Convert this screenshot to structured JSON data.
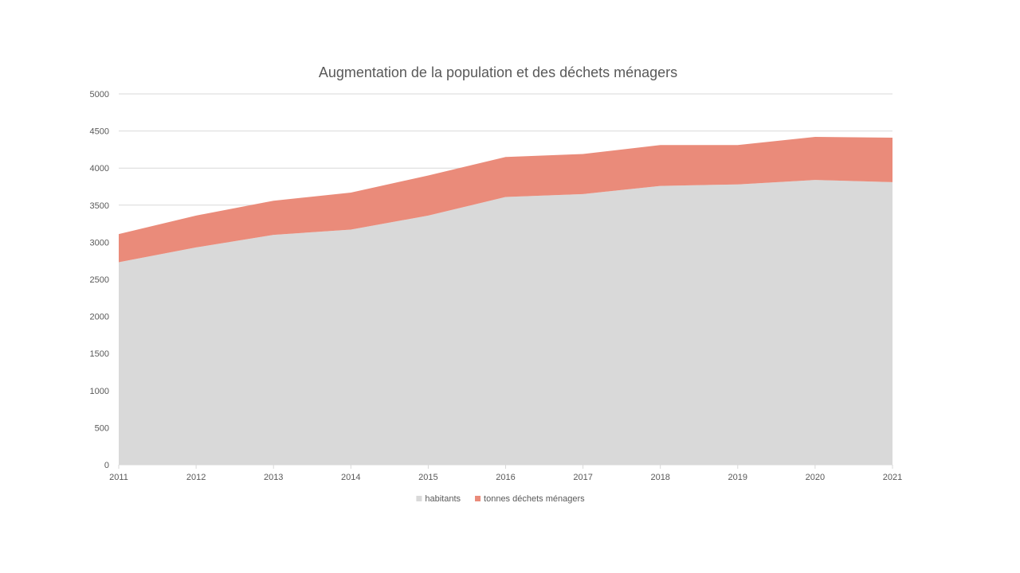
{
  "chart_data": {
    "type": "area",
    "stacked": true,
    "title": "Augmentation de la population et des déchets ménagers",
    "xlabel": "",
    "ylabel": "",
    "categories": [
      "2011",
      "2012",
      "2013",
      "2014",
      "2015",
      "2016",
      "2017",
      "2018",
      "2019",
      "2020",
      "2021"
    ],
    "ylim": [
      0,
      5000
    ],
    "yticks": [
      0,
      500,
      1000,
      1500,
      2000,
      2500,
      3000,
      3500,
      4000,
      4500,
      5000
    ],
    "grid": true,
    "legend_position": "bottom",
    "series": [
      {
        "name": "habitants",
        "color": "#d9d9d9",
        "values": [
          2730,
          2930,
          3100,
          3170,
          3360,
          3610,
          3650,
          3760,
          3780,
          3840,
          3810
        ]
      },
      {
        "name": "tonnes déchets ménagers",
        "color": "#ea8b7a",
        "values": [
          380,
          430,
          460,
          500,
          540,
          540,
          540,
          550,
          530,
          580,
          600
        ]
      }
    ]
  }
}
